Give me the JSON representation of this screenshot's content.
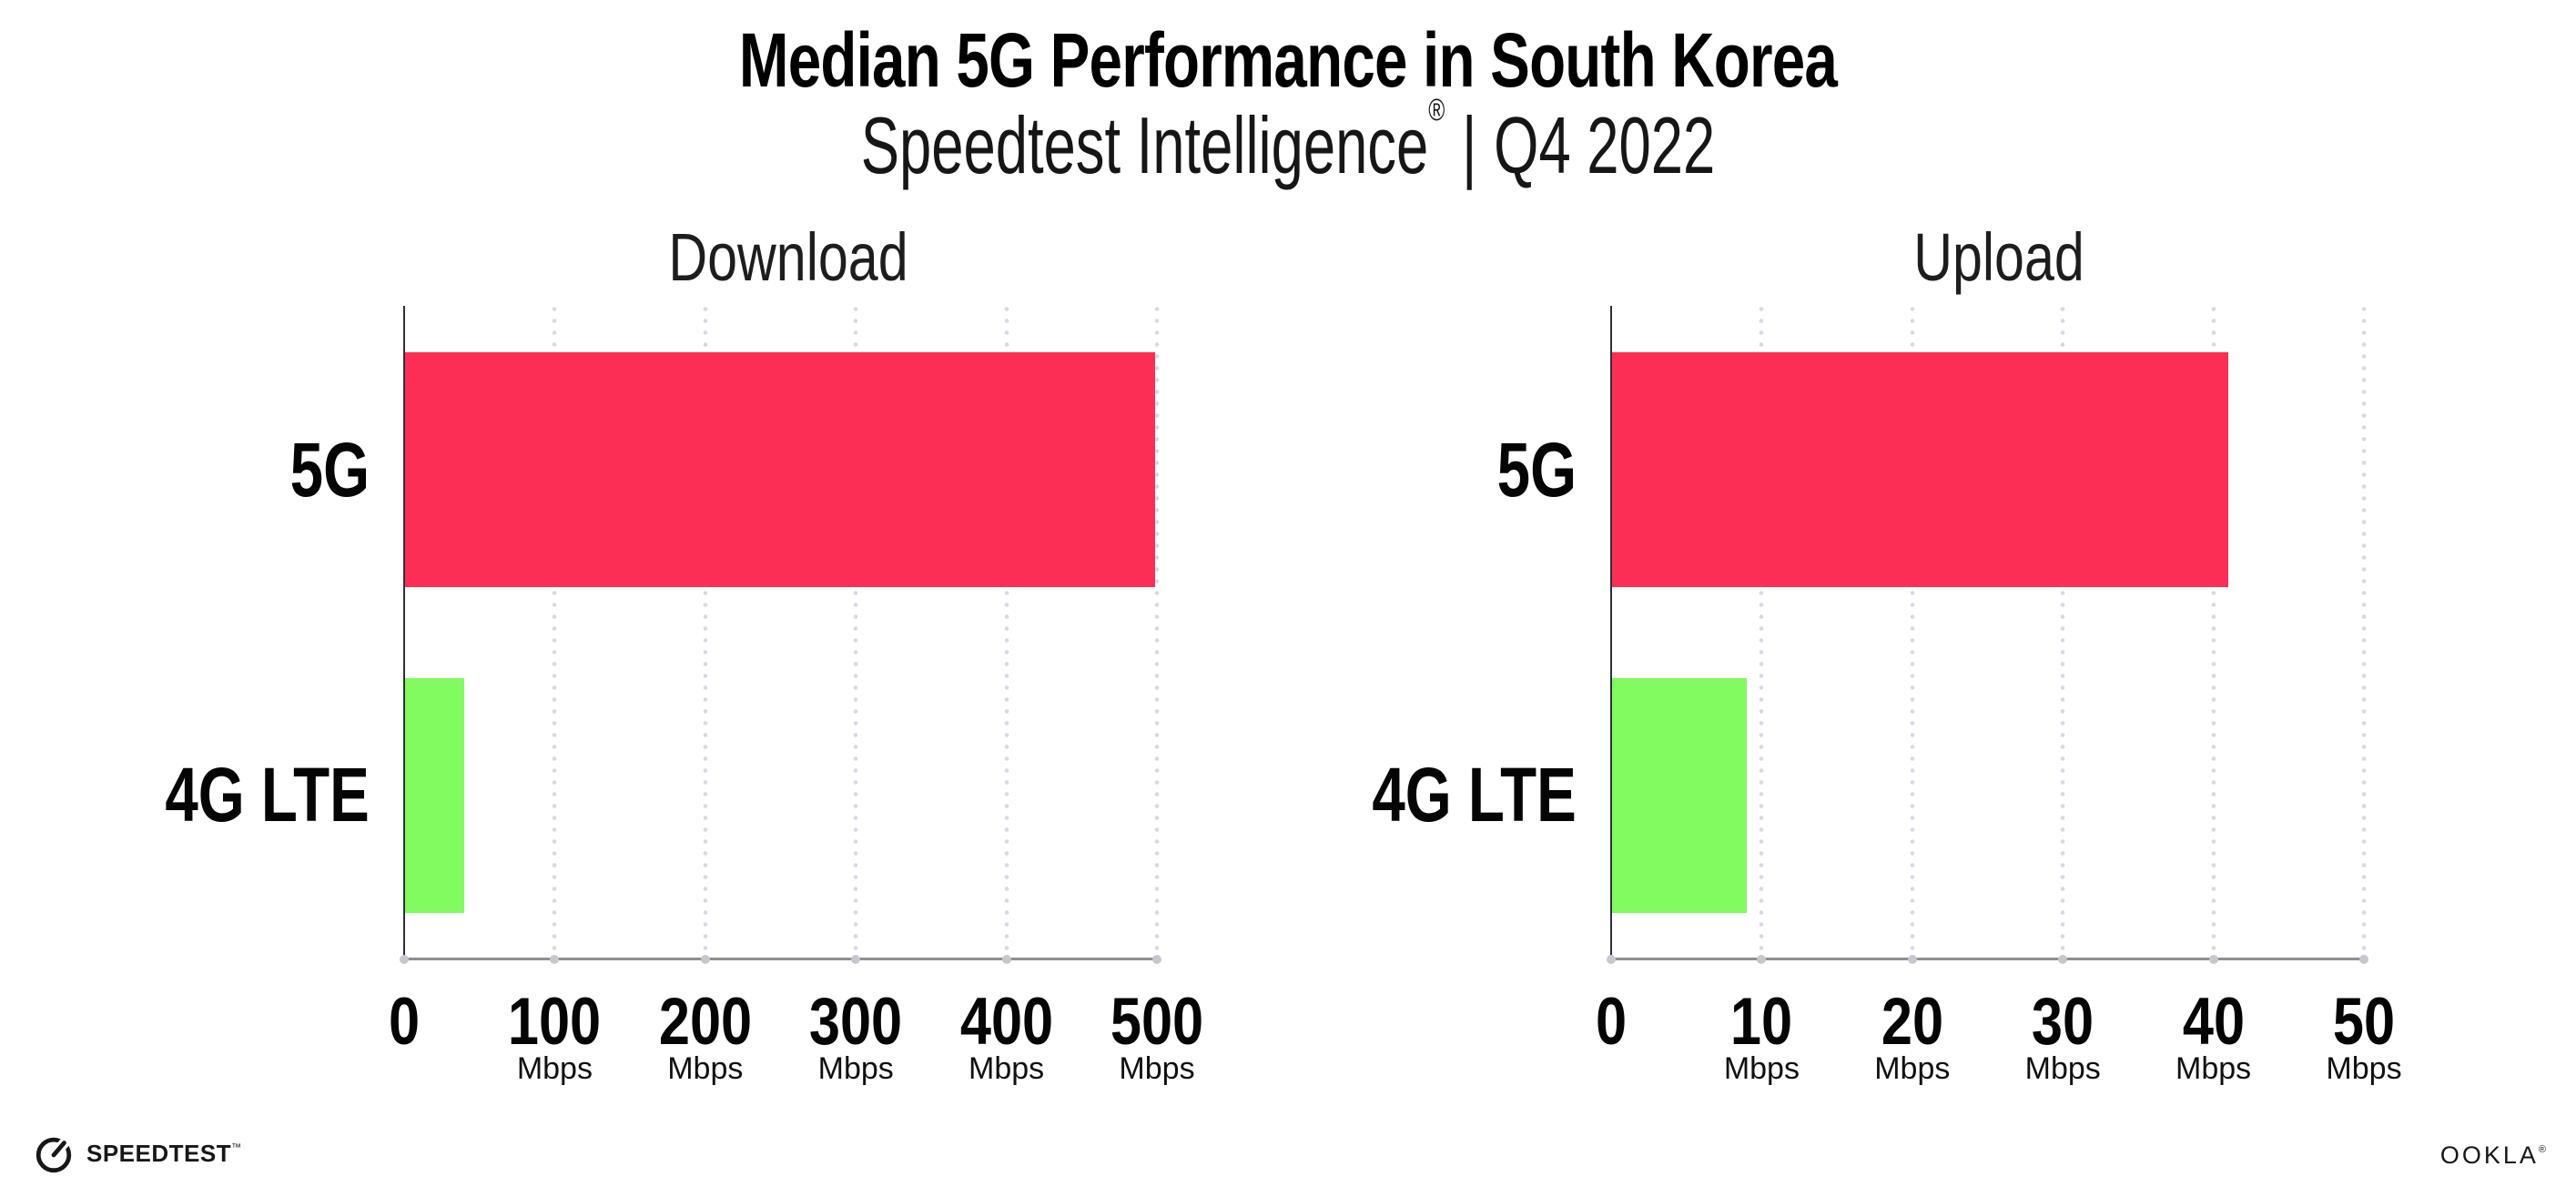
{
  "header": {
    "title": "Median 5G Performance in South Korea",
    "subtitle": {
      "brand": "Speedtest Intelligence",
      "reg": "®",
      "separator": "|",
      "period": "Q4 2022"
    }
  },
  "chart_data": [
    {
      "type": "bar",
      "orientation": "horizontal",
      "title": "Download",
      "categories": [
        "5G",
        "4G LTE"
      ],
      "values": [
        499,
        40
      ],
      "unit": "Mbps",
      "xlim": [
        0,
        500
      ],
      "xticks": [
        0,
        100,
        200,
        300,
        400,
        500
      ],
      "tick_unit_label": "Mbps",
      "bar_colors": [
        "#FC2E55",
        "#81FB60"
      ],
      "grid": "dotted-vertical",
      "legend": false
    },
    {
      "type": "bar",
      "orientation": "horizontal",
      "title": "Upload",
      "categories": [
        "5G",
        "4G LTE"
      ],
      "values": [
        41,
        9
      ],
      "unit": "Mbps",
      "xlim": [
        0,
        50
      ],
      "xticks": [
        0,
        10,
        20,
        30,
        40,
        50
      ],
      "tick_unit_label": "Mbps",
      "bar_colors": [
        "#FC2E55",
        "#81FB60"
      ],
      "grid": "dotted-vertical",
      "legend": false
    }
  ],
  "footer": {
    "speedtest_label": "SPEEDTEST",
    "speedtest_tm": "™",
    "ookla_label": "OOKLA",
    "ookla_reg": "®"
  }
}
